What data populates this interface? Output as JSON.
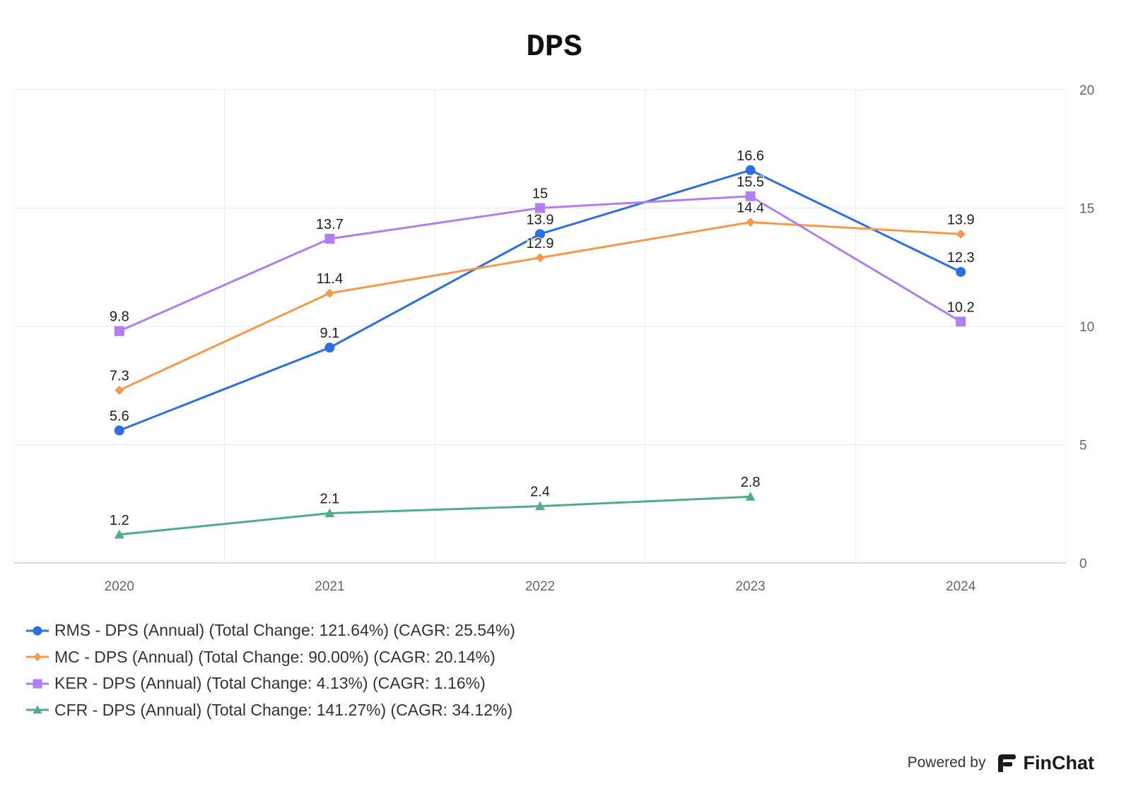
{
  "chart_data": {
    "type": "line",
    "title": "DPS",
    "categories": [
      "2020",
      "2021",
      "2022",
      "2023",
      "2024"
    ],
    "series": [
      {
        "name": "RMS - DPS (Annual) (Total Change: 121.64%) (CAGR: 25.54%)",
        "color": "#2c6fe3",
        "marker": "circle",
        "values": [
          5.6,
          9.1,
          13.9,
          16.6,
          12.3
        ]
      },
      {
        "name": "MC - DPS (Annual) (Total Change: 90.00%) (CAGR: 20.14%)",
        "color": "#f7994a",
        "marker": "diamond",
        "values": [
          7.3,
          11.4,
          12.9,
          14.4,
          13.9
        ]
      },
      {
        "name": "KER - DPS (Annual) (Total Change: 4.13%) (CAGR: 1.16%)",
        "color": "#b07ef0",
        "marker": "square",
        "values": [
          9.8,
          13.7,
          15,
          15.5,
          10.2
        ]
      },
      {
        "name": "CFR - DPS (Annual) (Total Change: 141.27%) (CAGR: 34.12%)",
        "color": "#50ac8a",
        "marker": "triangle",
        "values": [
          1.2,
          2.1,
          2.4,
          2.8,
          null
        ]
      }
    ],
    "ylim": [
      0,
      20
    ],
    "yticks": [
      0,
      5,
      10,
      15,
      20
    ],
    "y_axis_position": "right",
    "grid": true,
    "data_labels": true,
    "legend": "bottom-left"
  },
  "footer": {
    "powered_by": "Powered by",
    "brand": "FinChat"
  }
}
